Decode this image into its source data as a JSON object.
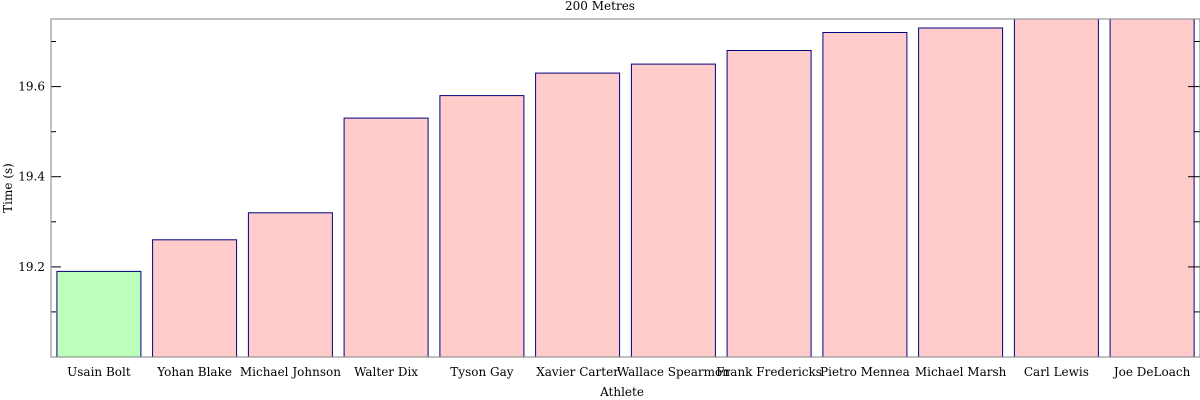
{
  "chart_data": {
    "type": "bar",
    "title": "200 Metres",
    "xlabel": "Athlete",
    "ylabel": "Time (s)",
    "categories": [
      "Usain Bolt",
      "Yohan Blake",
      "Michael Johnson",
      "Walter Dix",
      "Tyson Gay",
      "Xavier Carter",
      "Wallace Spearmon",
      "Frank Fredericks",
      "Pietro Mennea",
      "Michael Marsh",
      "Carl Lewis",
      "Joe DeLoach"
    ],
    "values": [
      19.19,
      19.26,
      19.32,
      19.53,
      19.58,
      19.63,
      19.65,
      19.68,
      19.72,
      19.73,
      19.75,
      19.75
    ],
    "highlight_index": 0,
    "ylim": [
      19.0,
      19.75
    ],
    "yticks": [
      19.2,
      19.4,
      19.6
    ],
    "yticks_minor": [
      19.1,
      19.3,
      19.5,
      19.7
    ],
    "grid": false,
    "colors": {
      "bar_fill": "#ffcccc",
      "highlight_fill": "#bbffbb",
      "bar_stroke": "#000080",
      "axis": "#808080"
    }
  }
}
